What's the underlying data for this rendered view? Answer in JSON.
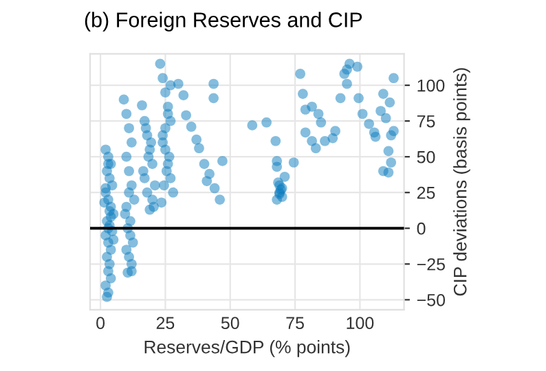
{
  "chart_data": {
    "type": "scatter",
    "title": "(b) Foreign Reserves and CIP",
    "xlabel": "Reserves/GDP (% points)",
    "ylabel": "CIP deviations (basis points)",
    "xlim": [
      -4,
      117
    ],
    "ylim": [
      -57,
      122
    ],
    "xticks": [
      0,
      25,
      50,
      75,
      100
    ],
    "yticks": [
      -50,
      -25,
      0,
      25,
      50,
      75,
      100
    ],
    "grid": true,
    "marker": "circle",
    "legend": false,
    "ref_lines": [
      {
        "axis": "y",
        "value": 0,
        "color": "#000000",
        "line_style": "solid"
      }
    ],
    "series": [
      {
        "color": "#0a7cbd",
        "x": [
          2,
          3,
          4,
          2.5,
          3.5,
          4.5,
          2,
          3,
          4,
          5,
          2.5,
          3.5,
          4.5,
          2,
          3,
          4,
          2.5,
          3.5,
          3,
          4,
          2,
          3,
          4,
          5,
          3,
          2.5,
          3.5,
          1.5,
          2,
          3,
          9,
          10,
          11,
          12,
          10,
          11,
          12,
          13,
          9.5,
          10.5,
          11.5,
          12.5,
          10,
          11,
          12,
          10.5,
          11.5,
          10,
          11,
          12,
          16,
          17,
          18,
          19,
          20,
          17,
          18,
          19,
          20,
          21,
          16.5,
          18.5,
          19.5,
          17.5,
          20.5,
          23,
          24,
          25,
          26,
          27,
          24,
          25,
          26,
          27,
          28,
          23.5,
          24.5,
          25.5,
          26.5,
          24,
          25,
          26,
          27,
          30,
          32,
          33,
          35,
          37,
          38,
          40,
          42,
          44,
          46,
          41,
          43.6,
          43.6,
          47,
          58.5,
          64,
          67.5,
          68,
          68,
          69,
          69,
          70,
          68,
          69,
          70,
          71,
          68.5,
          69.5,
          74.5,
          77,
          78,
          79,
          81.5,
          79,
          81.5,
          83,
          84,
          85,
          86.5,
          89.5,
          90.5,
          92.5,
          94,
          95,
          96,
          95,
          99,
          99.5,
          101,
          103.5,
          105.5,
          106,
          108,
          109,
          110,
          111,
          109,
          111,
          112,
          111.5,
          112,
          113,
          113
        ],
        "values": [
          55,
          50,
          45,
          40,
          35,
          30,
          25,
          20,
          15,
          10,
          5,
          2,
          -2,
          -5,
          -10,
          -15,
          -20,
          -25,
          -30,
          -35,
          -40,
          0,
          8,
          -8,
          -45,
          -48,
          12,
          18,
          28,
          45,
          90,
          80,
          70,
          60,
          50,
          40,
          30,
          20,
          10,
          0,
          -5,
          -10,
          -15,
          -20,
          -25,
          -31,
          5,
          15,
          25,
          -30,
          86,
          75,
          65,
          55,
          45,
          35,
          25,
          13,
          20,
          30,
          40,
          50,
          60,
          70,
          15,
          115,
          105,
          95,
          85,
          75,
          65,
          55,
          45,
          35,
          25,
          18,
          30,
          40,
          50,
          60,
          70,
          80,
          100,
          101,
          93,
          79,
          71,
          62,
          56,
          45,
          38,
          28,
          20,
          33,
          101,
          91,
          47,
          72,
          74,
          61,
          47,
          43,
          30,
          25,
          22,
          20,
          24,
          28,
          36,
          32,
          27,
          46,
          108,
          94,
          83,
          85,
          67,
          61,
          56,
          80,
          74,
          61,
          63,
          68,
          91,
          108,
          111,
          115,
          101,
          113,
          91,
          80,
          73,
          67,
          64,
          82,
          94,
          77,
          54,
          40,
          39,
          46,
          88,
          65,
          68,
          105
        ]
      }
    ]
  }
}
